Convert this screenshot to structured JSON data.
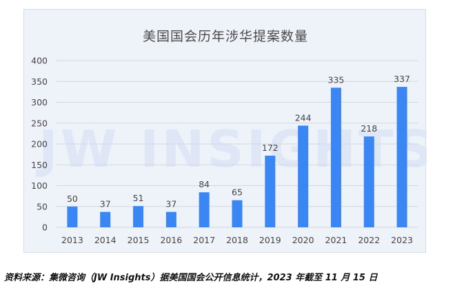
{
  "chart_data": {
    "type": "bar",
    "title": "美国国会历年涉华提案数量",
    "categories": [
      "2013",
      "2014",
      "2015",
      "2016",
      "2017",
      "2018",
      "2019",
      "2020",
      "2021",
      "2022",
      "2023"
    ],
    "values": [
      50,
      37,
      51,
      37,
      84,
      65,
      172,
      244,
      335,
      218,
      337
    ],
    "ylim": [
      0,
      400
    ],
    "yticks": [
      0,
      50,
      100,
      150,
      200,
      250,
      300,
      350,
      400
    ],
    "grid": true,
    "bar_color": "#3a86f5",
    "watermark": "JW INSIGHTS"
  },
  "caption": "资料来源：集微咨询（JW Insights）据美国国会公开信息统计，2023 年截至 11 月 15 日"
}
